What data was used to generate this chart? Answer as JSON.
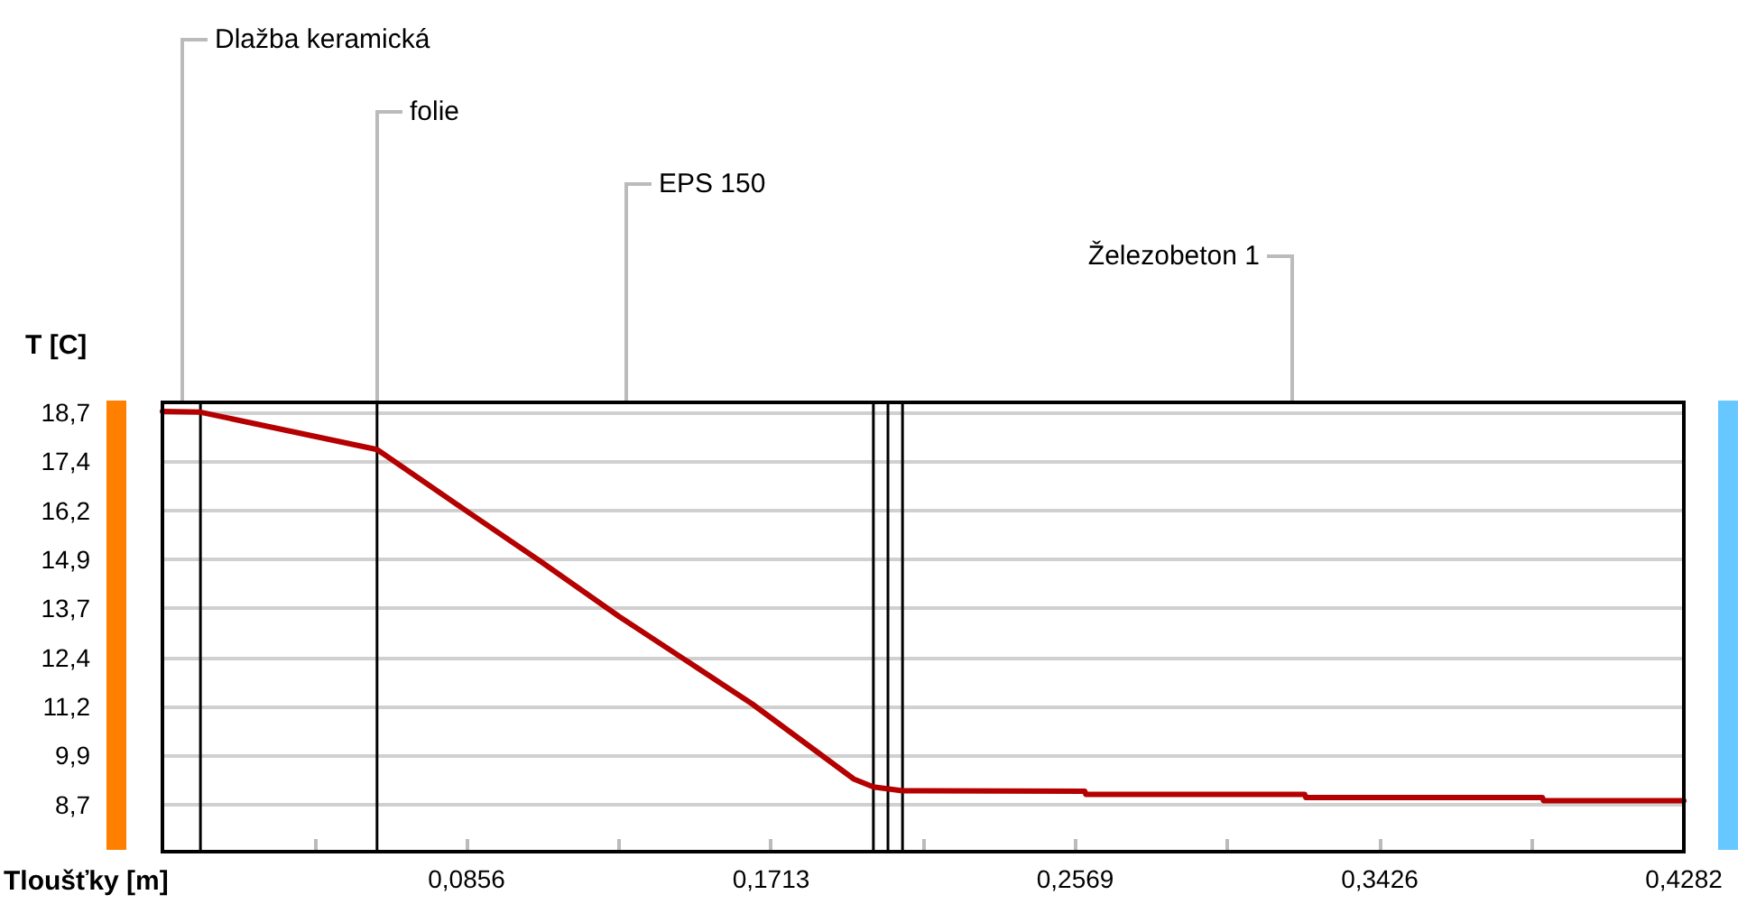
{
  "chart_data": {
    "type": "line",
    "xlabel": "Tloušťky [m]",
    "ylabel": "T [C]",
    "x": [
      0,
      0.0107,
      0.0604,
      0.0853,
      0.1067,
      0.1286,
      0.1659,
      0.1946,
      0.2001,
      0.2083,
      0.2596,
      0.2599,
      0.3215,
      0.3218,
      0.3884,
      0.3887,
      0.4282
    ],
    "series": [
      {
        "color": "#b40000",
        "values": [
          18.72,
          18.7,
          17.75,
          16.2,
          14.88,
          13.49,
          11.27,
          9.35,
          9.15,
          9.05,
          9.04,
          8.96,
          8.96,
          8.88,
          8.88,
          8.8,
          8.8
        ]
      }
    ],
    "xlim": [
      0,
      0.4282
    ],
    "xticks": [
      {
        "value": 0.0428,
        "label": null
      },
      {
        "value": 0.0856,
        "label": "0,0856"
      },
      {
        "value": 0.1285,
        "label": null
      },
      {
        "value": 0.1713,
        "label": "0,1713"
      },
      {
        "value": 0.2141,
        "label": null
      },
      {
        "value": 0.2569,
        "label": "0,2569"
      },
      {
        "value": 0.2997,
        "label": null
      },
      {
        "value": 0.3426,
        "label": "0,3426"
      },
      {
        "value": 0.3854,
        "label": null
      },
      {
        "value": 0.4282,
        "label": "0,4282"
      }
    ],
    "ylim": [
      7.5,
      18.95
    ],
    "yticks": [
      {
        "value": 8.7,
        "label": "8,7"
      },
      {
        "value": 9.95,
        "label": "9,9"
      },
      {
        "value": 11.2,
        "label": "11,2"
      },
      {
        "value": 12.45,
        "label": "12,4"
      },
      {
        "value": 13.7,
        "label": "13,7"
      },
      {
        "value": 14.95,
        "label": "14,9"
      },
      {
        "value": 16.2,
        "label": "16,2"
      },
      {
        "value": 17.45,
        "label": "17,4"
      },
      {
        "value": 18.7,
        "label": "18,7"
      }
    ],
    "grid": "y",
    "marker": "none",
    "line_style": "solid",
    "ref_lines": [
      {
        "axis": "x",
        "value": 0.0107,
        "color": "#000000"
      },
      {
        "axis": "x",
        "value": 0.0604,
        "color": "#000000"
      },
      {
        "axis": "x",
        "value": 0.2001,
        "color": "#000000"
      },
      {
        "axis": "x",
        "value": 0.2042,
        "color": "#000000"
      },
      {
        "axis": "x",
        "value": 0.2083,
        "color": "#000000"
      }
    ],
    "annotations": [
      "Dlažba keramická",
      "folie",
      "EPS 150",
      "Železobeton 1"
    ]
  }
}
